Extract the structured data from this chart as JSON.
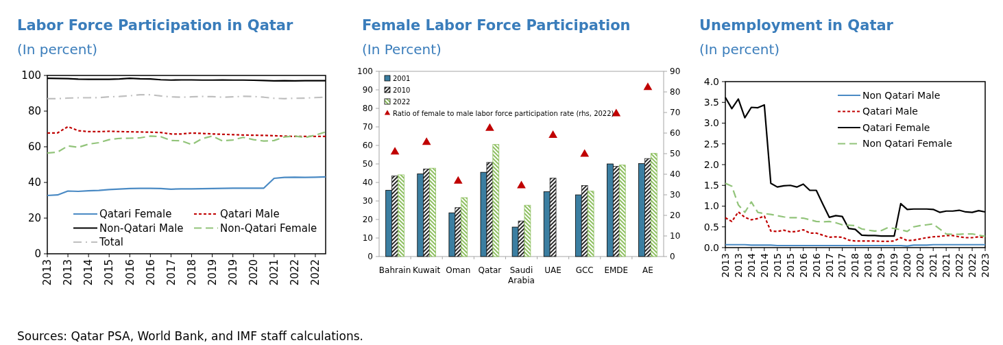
{
  "chart_data": [
    {
      "type": "line",
      "title": "Labor Force Participation in Qatar",
      "subtitle": "(In percent)",
      "annotations": [
        "Sources: Qatar PSA, World Bank, and IMF staff calculations."
      ],
      "categories": [
        "2013",
        null,
        "2013",
        null,
        "2014",
        null,
        "2015",
        null,
        "2016",
        null,
        "2016",
        null,
        "2017",
        null,
        "2018",
        null,
        "2019",
        null,
        "2019",
        null,
        "2020",
        null,
        "2021",
        null,
        "2022",
        null,
        "2022",
        null
      ],
      "ylim": [
        0,
        100
      ],
      "yticks": [
        0,
        20,
        40,
        60,
        80,
        100
      ],
      "legend": "bottom",
      "series": [
        {
          "name": "Qatari Female",
          "color": "#4a8ac4",
          "line_style": "solid",
          "values": [
            32.7,
            33,
            35.2,
            35,
            35.3,
            35.5,
            36,
            36.3,
            36.6,
            36.7,
            36.7,
            36.6,
            36.2,
            36.4,
            36.4,
            36.5,
            36.6,
            36.7,
            36.8,
            36.8,
            36.8,
            36.8,
            42.3,
            42.8,
            42.9,
            42.8,
            42.9,
            43.1
          ]
        },
        {
          "name": "Qatari Male",
          "color": "#c00000",
          "line_style": "dotted",
          "values": [
            67.7,
            67.8,
            71.3,
            69,
            68.5,
            68.5,
            68.7,
            68.5,
            68.4,
            68.3,
            68.2,
            68,
            67.2,
            67.2,
            67.7,
            67.5,
            67.2,
            67,
            66.8,
            66.6,
            66.5,
            66.4,
            66.2,
            66,
            65.8,
            65.8,
            65.8,
            65.8
          ]
        },
        {
          "name": "Non-Qatari Male",
          "color": "#000000",
          "line_style": "solid",
          "values": [
            98.4,
            98.3,
            98.2,
            97.9,
            97.8,
            97.8,
            97.8,
            98,
            98.4,
            98.1,
            98,
            97.6,
            97.4,
            97.5,
            97.5,
            97.4,
            97.4,
            97.5,
            97.4,
            97.4,
            97.3,
            97.2,
            97,
            97.1,
            97,
            97.1,
            97.1,
            97.1
          ]
        },
        {
          "name": "Non-Qatari Female",
          "color": "#92c47a",
          "line_style": "dashed",
          "values": [
            56.5,
            57,
            60.5,
            59.7,
            61.5,
            62.3,
            64,
            64.7,
            64.8,
            65,
            66,
            65.7,
            63.5,
            63.4,
            61.2,
            64.5,
            66,
            63.3,
            63.8,
            65.3,
            64,
            63.2,
            63.5,
            65.5,
            66,
            65.2,
            66.5,
            68.3
          ]
        },
        {
          "name": "Total",
          "color": "#bfbfbf",
          "line_style": "dashdot",
          "values": [
            87,
            87,
            87.3,
            87.5,
            87.5,
            87.6,
            88,
            88.2,
            88.6,
            89.2,
            89.2,
            88.5,
            88,
            87.8,
            88,
            88.2,
            88.1,
            87.8,
            88,
            88.3,
            88.2,
            87.8,
            87.2,
            87,
            87.2,
            87.3,
            87.6,
            87.8
          ]
        }
      ]
    },
    {
      "type": "bar",
      "title": "Female Labor Force Participation",
      "subtitle": "(In Percent)",
      "categories": [
        "Bahrain",
        "Kuwait",
        "Oman",
        "Qatar",
        "Saudi Arabia",
        "UAE",
        "GCC",
        "EMDE",
        "AE"
      ],
      "ylim": [
        0,
        100
      ],
      "yticks": [
        0,
        10,
        20,
        30,
        40,
        50,
        60,
        70,
        80,
        90,
        100
      ],
      "y2lim": [
        0,
        90
      ],
      "y2ticks": [
        0,
        10,
        20,
        30,
        40,
        50,
        60,
        70,
        80,
        90
      ],
      "legend": "top left",
      "series": [
        {
          "name": "2001",
          "color": "#3b7ea1",
          "values": [
            35.8,
            44.6,
            23.6,
            45.5,
            15.9,
            35,
            33.3,
            50,
            50.2
          ]
        },
        {
          "name": "2010",
          "color": "#262626",
          "values": [
            43.5,
            47.3,
            26.4,
            50.8,
            19.2,
            42.3,
            38.3,
            48.7,
            52.9
          ]
        },
        {
          "name": "2022",
          "color": "#8dbf5f",
          "values": [
            44.1,
            47.7,
            31.8,
            60.5,
            27.7,
            null,
            35.3,
            49.4,
            55.7
          ]
        },
        {
          "name": "Ratio of female to male labor force participation rate (rhs, 2022)",
          "type": "scatter",
          "axis": "y2",
          "marker": "triangle",
          "color": "#c00000",
          "values": [
            50.8,
            55.5,
            36.6,
            62.3,
            34.4,
            58.9,
            49.7,
            69.4,
            82.1
          ]
        }
      ]
    },
    {
      "type": "line",
      "title": "Unemployment in Qatar",
      "subtitle": "(In percent)",
      "categories": [
        "2013",
        null,
        "2013",
        null,
        "2014",
        null,
        "2014",
        null,
        "2015",
        null,
        "2015",
        null,
        "2016",
        null,
        "2016",
        null,
        "2017",
        null,
        "2017",
        null,
        "2018",
        null,
        "2018",
        null,
        "2019",
        null,
        "2019",
        null,
        "2020",
        null,
        "2020",
        null,
        "2021",
        null,
        "2021",
        null,
        "2022",
        null,
        "2022",
        null,
        "2023"
      ],
      "ylim": [
        0,
        4
      ],
      "yticks": [
        {
          "value": 0,
          "label": "0.0"
        },
        {
          "value": 0.5,
          "label": "0.5"
        },
        {
          "value": 1,
          "label": "1.0"
        },
        {
          "value": 1.5,
          "label": "1.5"
        },
        {
          "value": 2,
          "label": "2.0"
        },
        {
          "value": 2.5,
          "label": "2.5"
        },
        {
          "value": 3,
          "label": "3.0"
        },
        {
          "value": 3.5,
          "label": "3.5"
        },
        {
          "value": 4,
          "label": "4.0"
        }
      ],
      "legend": "top right",
      "series": [
        {
          "name": "Non Qatari Male",
          "color": "#4a8ac4",
          "line_style": "solid",
          "values": [
            0.07,
            0.07,
            0.07,
            0.07,
            0.06,
            0.06,
            0.06,
            0.06,
            0.05,
            0.05,
            0.05,
            0.05,
            0.05,
            0.05,
            0.05,
            0.05,
            0.05,
            0.05,
            0.05,
            0.05,
            0.05,
            0.05,
            0.05,
            0.05,
            0.05,
            0.05,
            0.05,
            0.05,
            0.04,
            0.06,
            0.06,
            0.06,
            0.07,
            0.07,
            0.07,
            0.07,
            0.07,
            0.07,
            0.07,
            0.07,
            0.07
          ]
        },
        {
          "name": "Qatari Male",
          "color": "#c00000",
          "line_style": "dotted",
          "values": [
            0.72,
            0.63,
            0.86,
            0.73,
            0.67,
            0.7,
            0.76,
            0.4,
            0.39,
            0.42,
            0.38,
            0.39,
            0.43,
            0.35,
            0.35,
            0.3,
            0.25,
            0.26,
            0.25,
            0.18,
            0.16,
            0.16,
            0.16,
            0.16,
            0.15,
            0.15,
            0.16,
            0.24,
            0.17,
            0.18,
            0.21,
            0.24,
            0.26,
            0.27,
            0.29,
            0.29,
            0.26,
            0.24,
            0.24,
            0.26,
            0.24
          ]
        },
        {
          "name": "Qatari Female",
          "color": "#000000",
          "line_style": "solid",
          "values": [
            3.62,
            3.35,
            3.58,
            3.13,
            3.38,
            3.37,
            3.44,
            1.55,
            1.46,
            1.49,
            1.5,
            1.46,
            1.53,
            1.38,
            1.38,
            1.05,
            0.73,
            0.77,
            0.75,
            0.46,
            0.44,
            0.3,
            0.29,
            0.29,
            0.28,
            0.28,
            0.28,
            1.06,
            0.92,
            0.93,
            0.93,
            0.93,
            0.92,
            0.85,
            0.88,
            0.88,
            0.9,
            0.86,
            0.85,
            0.89,
            0.86
          ]
        },
        {
          "name": "Non Qatari Female",
          "color": "#92c47a",
          "line_style": "dashed",
          "values": [
            1.55,
            1.48,
            1.03,
            0.85,
            1.1,
            0.85,
            0.82,
            0.8,
            0.77,
            0.74,
            0.72,
            0.72,
            0.71,
            0.67,
            0.63,
            0.62,
            0.63,
            0.6,
            0.55,
            0.54,
            0.53,
            0.45,
            0.42,
            0.4,
            0.41,
            0.48,
            0.46,
            0.43,
            0.39,
            0.5,
            0.53,
            0.55,
            0.57,
            0.45,
            0.33,
            0.32,
            0.32,
            0.33,
            0.33,
            0.3,
            0.27
          ]
        }
      ]
    }
  ]
}
